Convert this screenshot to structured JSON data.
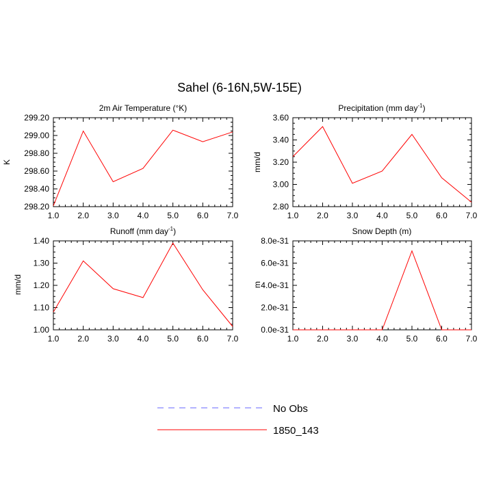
{
  "title": "Sahel (6-16N,5W-15E)",
  "legend": [
    {
      "name": "No Obs",
      "color": "#6666ff",
      "dashed": true
    },
    {
      "name": "1850_143",
      "color": "#ff0000",
      "dashed": false
    }
  ],
  "chart_data": [
    {
      "type": "line",
      "title": "2m Air Temperature (°K)",
      "ylabel": "K",
      "xlim": [
        1,
        7
      ],
      "ylim": [
        298.2,
        299.2
      ],
      "xticks": [
        "1.0",
        "2.0",
        "3.0",
        "4.0",
        "5.0",
        "6.0",
        "7.0"
      ],
      "yticks": [
        "298.20",
        "298.40",
        "298.60",
        "298.80",
        "299.00",
        "299.20"
      ],
      "x": [
        1,
        2,
        3,
        4,
        5,
        6,
        7
      ],
      "series": [
        {
          "name": "1850_143",
          "color": "#ff0000",
          "values": [
            298.21,
            299.05,
            298.48,
            298.63,
            299.06,
            298.93,
            299.04
          ]
        }
      ]
    },
    {
      "type": "line",
      "title": "Precipitation (mm day-1)",
      "ylabel": "mm/d",
      "xlim": [
        1,
        7
      ],
      "ylim": [
        2.8,
        3.6
      ],
      "xticks": [
        "1.0",
        "2.0",
        "3.0",
        "4.0",
        "5.0",
        "6.0",
        "7.0"
      ],
      "yticks": [
        "2.80",
        "3.00",
        "3.20",
        "3.40",
        "3.60"
      ],
      "x": [
        1,
        2,
        3,
        4,
        5,
        6,
        7
      ],
      "series": [
        {
          "name": "1850_143",
          "color": "#ff0000",
          "values": [
            3.25,
            3.52,
            3.01,
            3.12,
            3.45,
            3.06,
            2.84
          ]
        }
      ]
    },
    {
      "type": "line",
      "title": "Runoff (mm day-1)",
      "ylabel": "mm/d",
      "xlim": [
        1,
        7
      ],
      "ylim": [
        1.0,
        1.4
      ],
      "xticks": [
        "1.0",
        "2.0",
        "3.0",
        "4.0",
        "5.0",
        "6.0",
        "7.0"
      ],
      "yticks": [
        "1.00",
        "1.10",
        "1.20",
        "1.30",
        "1.40"
      ],
      "x": [
        1,
        2,
        3,
        4,
        5,
        6,
        7
      ],
      "series": [
        {
          "name": "1850_143",
          "color": "#ff0000",
          "values": [
            1.08,
            1.31,
            1.185,
            1.145,
            1.39,
            1.18,
            1.015
          ]
        }
      ]
    },
    {
      "type": "line",
      "title": "Snow Depth (m)",
      "ylabel": "m",
      "xlim": [
        1,
        7
      ],
      "ylim": [
        0,
        8e-31
      ],
      "xticks": [
        "1.0",
        "2.0",
        "3.0",
        "4.0",
        "5.0",
        "6.0",
        "7.0"
      ],
      "yticks": [
        "0.0e-31",
        "2.0e-31",
        "4.0e-31",
        "6.0e-31",
        "8.0e-31"
      ],
      "x": [
        1,
        2,
        3,
        4,
        5,
        6,
        7
      ],
      "series": [
        {
          "name": "1850_143",
          "color": "#ff0000",
          "values": [
            0,
            0,
            0,
            0,
            7.1e-31,
            0,
            0
          ]
        }
      ]
    }
  ]
}
